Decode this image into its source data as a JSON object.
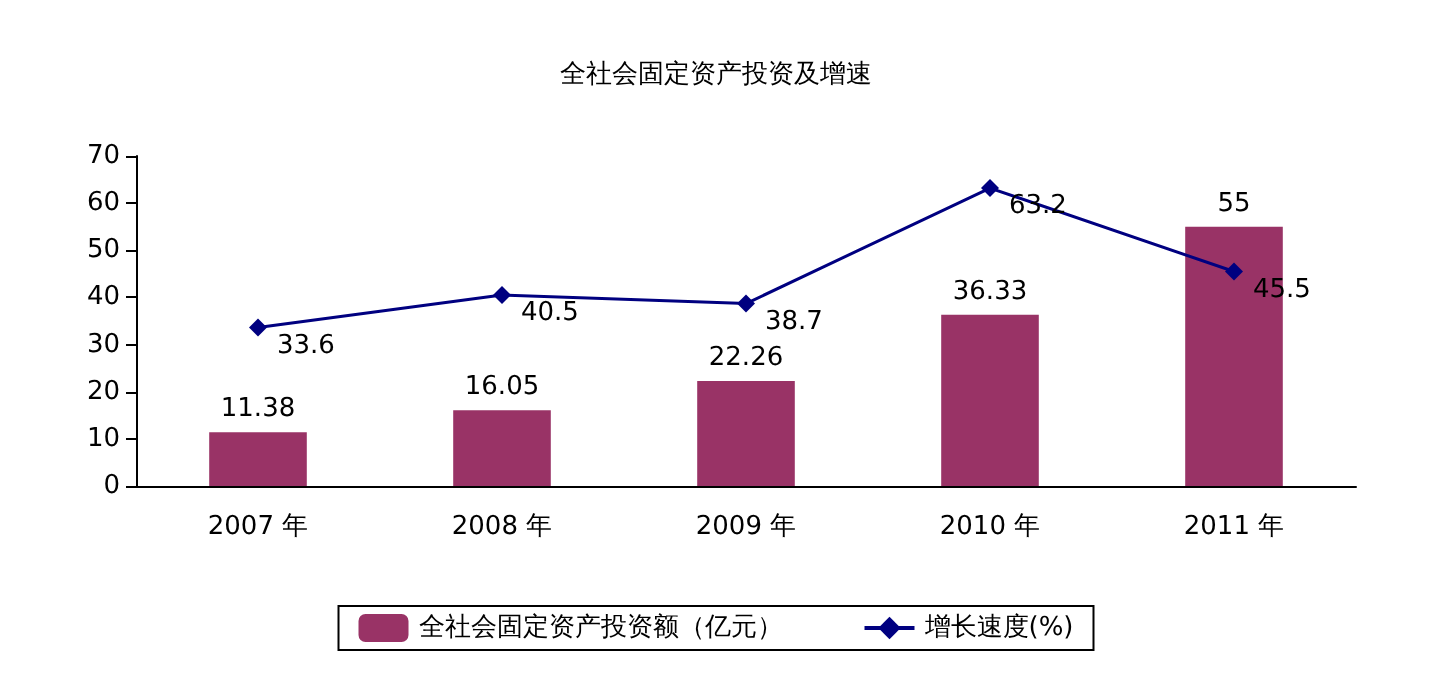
{
  "chart_data": {
    "type": "bar",
    "title": "全社会固定资产投资及增速",
    "categories": [
      "2007 年",
      "2008 年",
      "2009 年",
      "2010 年",
      "2011 年"
    ],
    "series": [
      {
        "name": "全社会固定资产投资额（亿元）",
        "color": "#993366",
        "values": [
          11.38,
          16.05,
          22.26,
          36.33,
          55
        ]
      },
      {
        "name": "增长速度(%)",
        "type": "line",
        "color": "#000080",
        "values": [
          33.6,
          40.5,
          38.7,
          63.2,
          45.5
        ]
      }
    ],
    "ylim": [
      0,
      70
    ],
    "yticks": [
      0,
      10,
      20,
      30,
      40,
      50,
      60,
      70
    ],
    "grid": false,
    "legend": "bottom",
    "data_labels": true,
    "marker": "diamond",
    "line_style": "solid"
  }
}
